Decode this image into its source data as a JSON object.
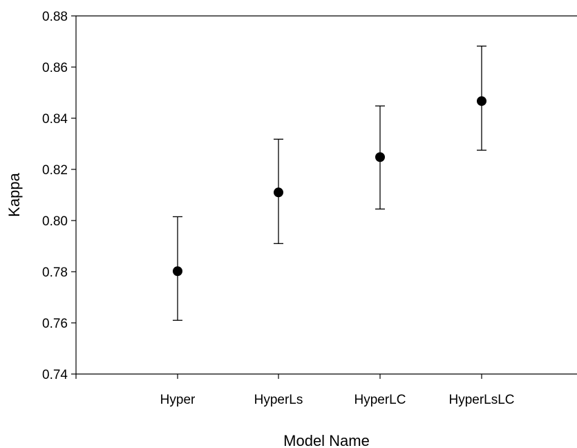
{
  "chart_data": {
    "type": "scatter",
    "title": "",
    "xlabel": "Model Name",
    "ylabel": "Kappa",
    "categories": [
      "Hyper",
      "HyperLs",
      "HyperLC",
      "HyperLsLC"
    ],
    "values": [
      0.7802,
      0.811,
      0.8248,
      0.8467
    ],
    "error_low": [
      0.761,
      0.791,
      0.8045,
      0.8275
    ],
    "error_high": [
      0.8015,
      0.8318,
      0.8448,
      0.8682
    ],
    "ylim": [
      0.74,
      0.88
    ],
    "yticks": [
      "0.74",
      "0.76",
      "0.78",
      "0.80",
      "0.82",
      "0.84",
      "0.86",
      "0.88"
    ],
    "grid": false,
    "legend": "none",
    "colors": {
      "marker": "#000000",
      "axis": "#000000",
      "background": "#ffffff"
    }
  }
}
